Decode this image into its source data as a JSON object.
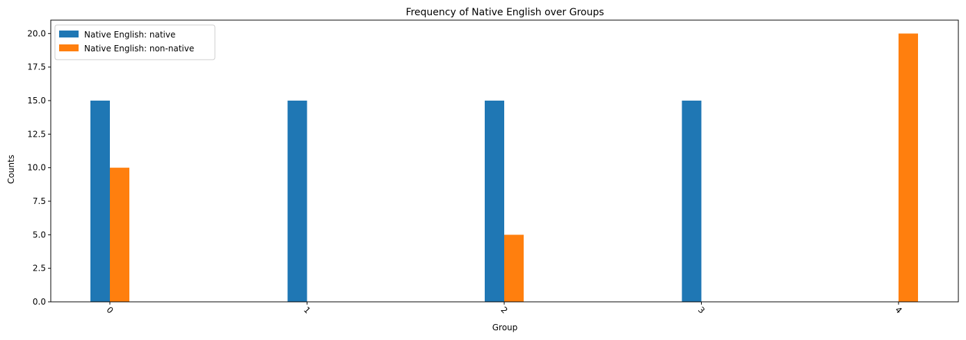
{
  "chart_data": {
    "type": "bar",
    "title": "Frequency of Native English over Groups",
    "xlabel": "Group",
    "ylabel": "Counts",
    "categories": [
      "0",
      "1",
      "2",
      "3",
      "4"
    ],
    "series": [
      {
        "name": "Native English: native",
        "color": "#1f77b4",
        "values": [
          15,
          15,
          15,
          15,
          0
        ]
      },
      {
        "name": "Native English: non-native",
        "color": "#ff7f0e",
        "values": [
          10,
          0,
          5,
          0,
          20
        ]
      }
    ],
    "ylim": [
      0,
      21
    ],
    "yticks": [
      "0.0",
      "2.5",
      "5.0",
      "7.5",
      "10.0",
      "12.5",
      "15.0",
      "17.5",
      "20.0"
    ],
    "legend_position": "upper-left",
    "grid": false
  }
}
